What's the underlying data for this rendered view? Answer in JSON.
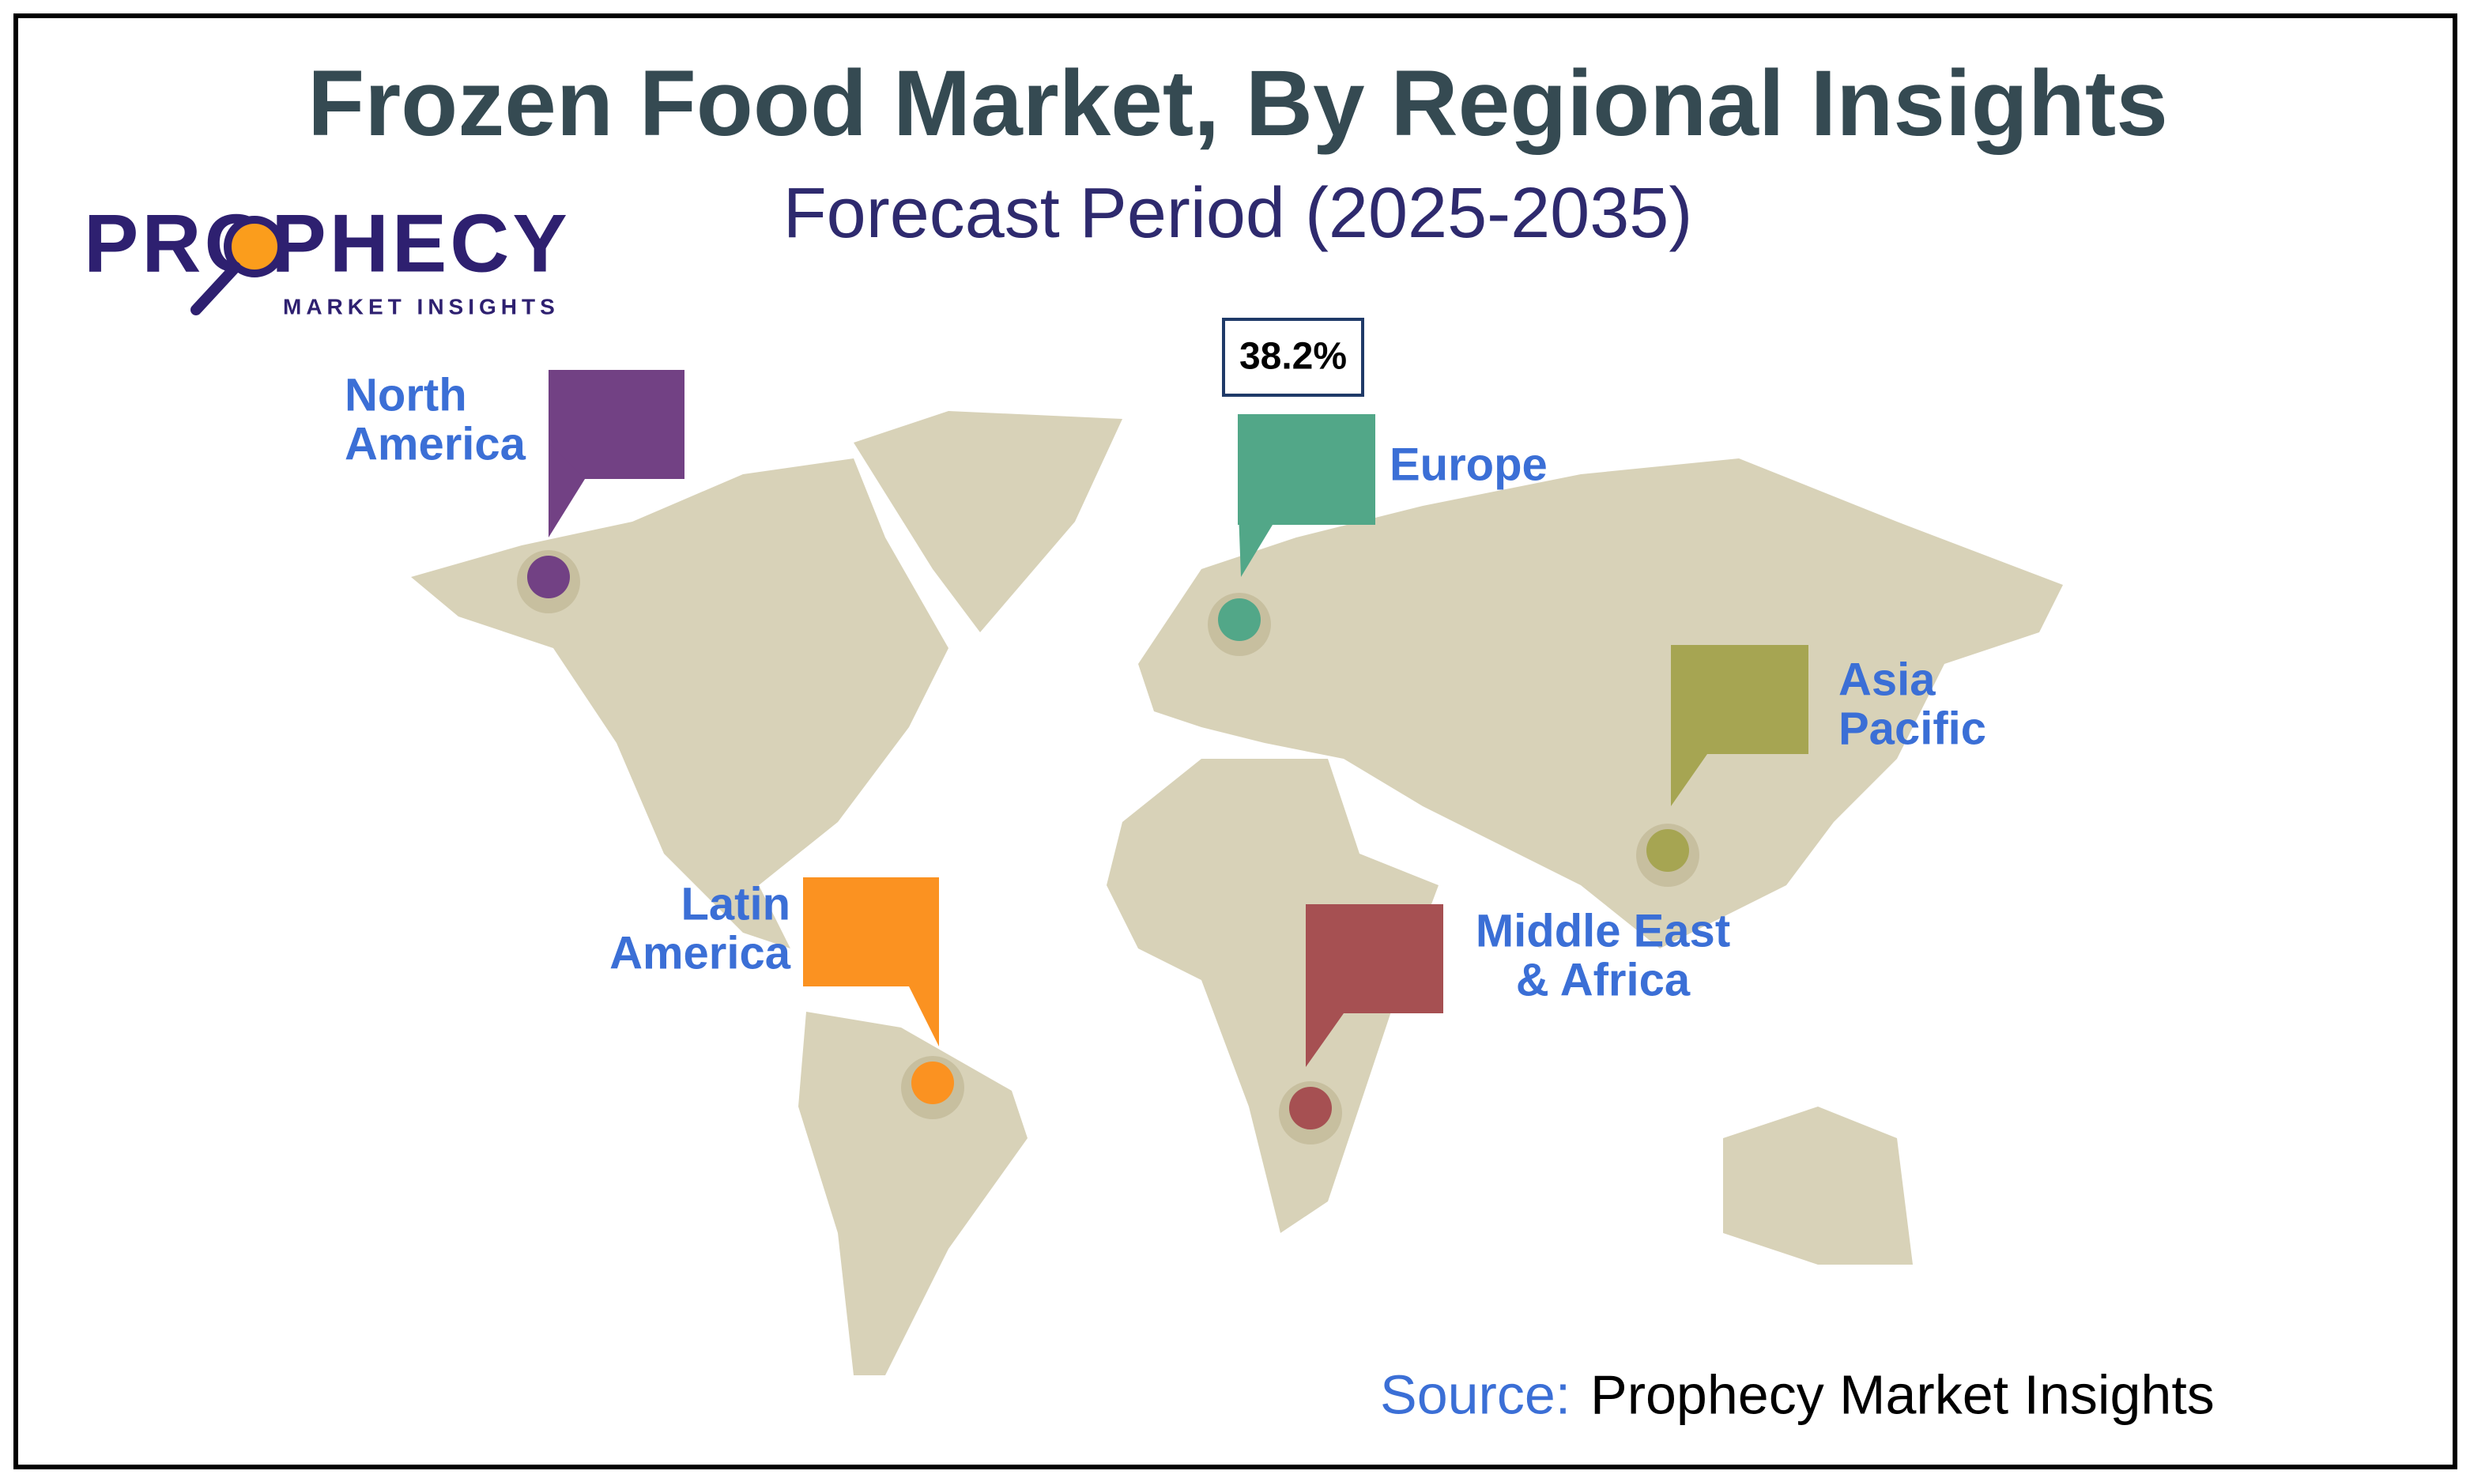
{
  "header": {
    "title": "Frozen Food Market, By Regional Insights",
    "subtitle": "Forecast Period (2025-2035)"
  },
  "logo": {
    "name": "PROPHECY",
    "tagline": "MARKET INSIGHTS"
  },
  "regions": [
    {
      "label_lines": [
        "North",
        "America"
      ],
      "color": "#724184"
    },
    {
      "label_lines": [
        "Europe"
      ],
      "color": "#52a788",
      "value_label": "38.2%"
    },
    {
      "label_lines": [
        "Asia",
        "Pacific"
      ],
      "color": "#a6a552"
    },
    {
      "label_lines": [
        "Latin",
        "America"
      ],
      "color": "#fb9221"
    },
    {
      "label_lines": [
        "Middle East",
        "& Africa"
      ],
      "color": "#a65052"
    }
  ],
  "source": {
    "label": "Source:",
    "text": "Prophecy Market Insights"
  }
}
